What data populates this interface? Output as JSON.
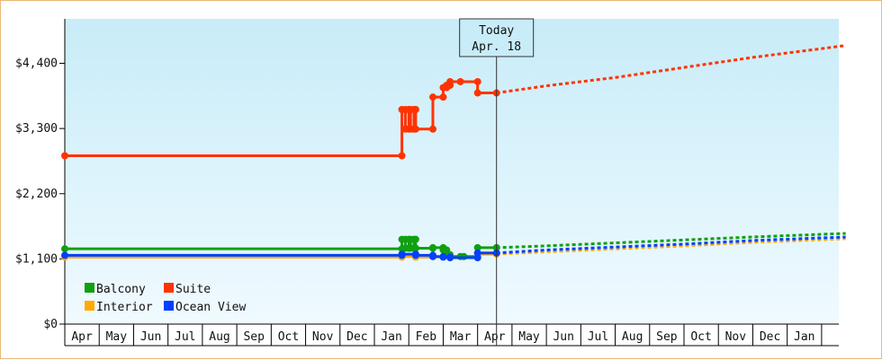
{
  "chart_data": {
    "type": "line",
    "y_axis": {
      "ticks": [
        0,
        1100,
        2200,
        3300,
        4400
      ],
      "tick_labels": [
        "$0",
        "$1,100",
        "$2,200",
        "$3,300",
        "$4,400"
      ],
      "ylim": [
        0,
        5150
      ]
    },
    "x_axis": {
      "ticks": [
        "Apr",
        "May",
        "Jun",
        "Jul",
        "Aug",
        "Sep",
        "Oct",
        "Nov",
        "Dec",
        "Jan",
        "Feb",
        "Mar",
        "Apr",
        "May",
        "Jun",
        "Jul",
        "Aug",
        "Sep",
        "Oct",
        "Nov",
        "Dec",
        "Jan"
      ],
      "xlim": [
        0,
        22.5
      ]
    },
    "today_marker": {
      "line1": "Today",
      "line2": "Apr. 18",
      "x": 12.55
    },
    "legend": {
      "placement": "bottom-left"
    },
    "series": [
      {
        "name": "Balcony",
        "color": "#10a010",
        "history": [
          [
            0,
            1270
          ],
          [
            9.8,
            1270
          ],
          [
            9.8,
            1430
          ],
          [
            9.9,
            1430
          ],
          [
            9.9,
            1280
          ],
          [
            10.0,
            1280
          ],
          [
            10.0,
            1430
          ],
          [
            10.05,
            1430
          ],
          [
            10.05,
            1280
          ],
          [
            10.15,
            1280
          ],
          [
            10.15,
            1430
          ],
          [
            10.2,
            1430
          ],
          [
            10.2,
            1280
          ],
          [
            10.7,
            1280
          ],
          [
            10.7,
            1290
          ],
          [
            11.0,
            1290
          ],
          [
            11.0,
            1250
          ],
          [
            11.1,
            1250
          ],
          [
            11.1,
            1170
          ],
          [
            11.2,
            1170
          ],
          [
            11.2,
            1140
          ],
          [
            11.5,
            1140
          ],
          [
            11.6,
            1140
          ],
          [
            12.0,
            1140
          ],
          [
            12.0,
            1290
          ],
          [
            12.55,
            1290
          ]
        ],
        "forecast": [
          [
            12.55,
            1290
          ],
          [
            14,
            1320
          ],
          [
            16,
            1370
          ],
          [
            18,
            1420
          ],
          [
            20,
            1470
          ],
          [
            22.7,
            1530
          ]
        ]
      },
      {
        "name": "Suite",
        "color": "#ff3300",
        "history": [
          [
            0,
            2840
          ],
          [
            9.8,
            2840
          ],
          [
            9.8,
            3620
          ],
          [
            9.9,
            3620
          ],
          [
            9.9,
            3290
          ],
          [
            10.0,
            3290
          ],
          [
            10.0,
            3620
          ],
          [
            10.05,
            3620
          ],
          [
            10.05,
            3290
          ],
          [
            10.15,
            3290
          ],
          [
            10.15,
            3620
          ],
          [
            10.2,
            3620
          ],
          [
            10.2,
            3290
          ],
          [
            10.7,
            3290
          ],
          [
            10.7,
            3830
          ],
          [
            11.0,
            3830
          ],
          [
            11.0,
            3990
          ],
          [
            11.1,
            3990
          ],
          [
            11.1,
            4030
          ],
          [
            11.2,
            4030
          ],
          [
            11.2,
            4090
          ],
          [
            11.5,
            4090
          ],
          [
            12.0,
            4090
          ],
          [
            12.0,
            3900
          ],
          [
            12.55,
            3900
          ]
        ],
        "forecast": [
          [
            12.55,
            3900
          ],
          [
            14,
            4020
          ],
          [
            16,
            4160
          ],
          [
            18,
            4330
          ],
          [
            20,
            4500
          ],
          [
            22.7,
            4700
          ]
        ]
      },
      {
        "name": "Interior",
        "color": "#ffaa00",
        "history": [
          [
            0,
            1130
          ],
          [
            9.8,
            1130
          ],
          [
            9.8,
            1140
          ],
          [
            10.2,
            1140
          ],
          [
            10.2,
            1130
          ],
          [
            11.2,
            1130
          ],
          [
            11.2,
            1120
          ],
          [
            12.0,
            1120
          ],
          [
            12.0,
            1180
          ],
          [
            12.55,
            1180
          ]
        ],
        "forecast": [
          [
            12.55,
            1180
          ],
          [
            14,
            1220
          ],
          [
            16,
            1270
          ],
          [
            18,
            1320
          ],
          [
            20,
            1380
          ],
          [
            22.7,
            1440
          ]
        ]
      },
      {
        "name": "Ocean View",
        "color": "#0040ff",
        "history": [
          [
            0,
            1160
          ],
          [
            9.8,
            1160
          ],
          [
            9.8,
            1180
          ],
          [
            10.2,
            1180
          ],
          [
            10.2,
            1160
          ],
          [
            10.7,
            1160
          ],
          [
            10.7,
            1140
          ],
          [
            11.0,
            1140
          ],
          [
            11.0,
            1130
          ],
          [
            11.2,
            1130
          ],
          [
            11.2,
            1120
          ],
          [
            12.0,
            1120
          ],
          [
            12.0,
            1200
          ],
          [
            12.55,
            1200
          ]
        ],
        "forecast": [
          [
            12.55,
            1200
          ],
          [
            14,
            1250
          ],
          [
            16,
            1300
          ],
          [
            18,
            1350
          ],
          [
            20,
            1410
          ],
          [
            22.7,
            1470
          ]
        ]
      }
    ]
  }
}
